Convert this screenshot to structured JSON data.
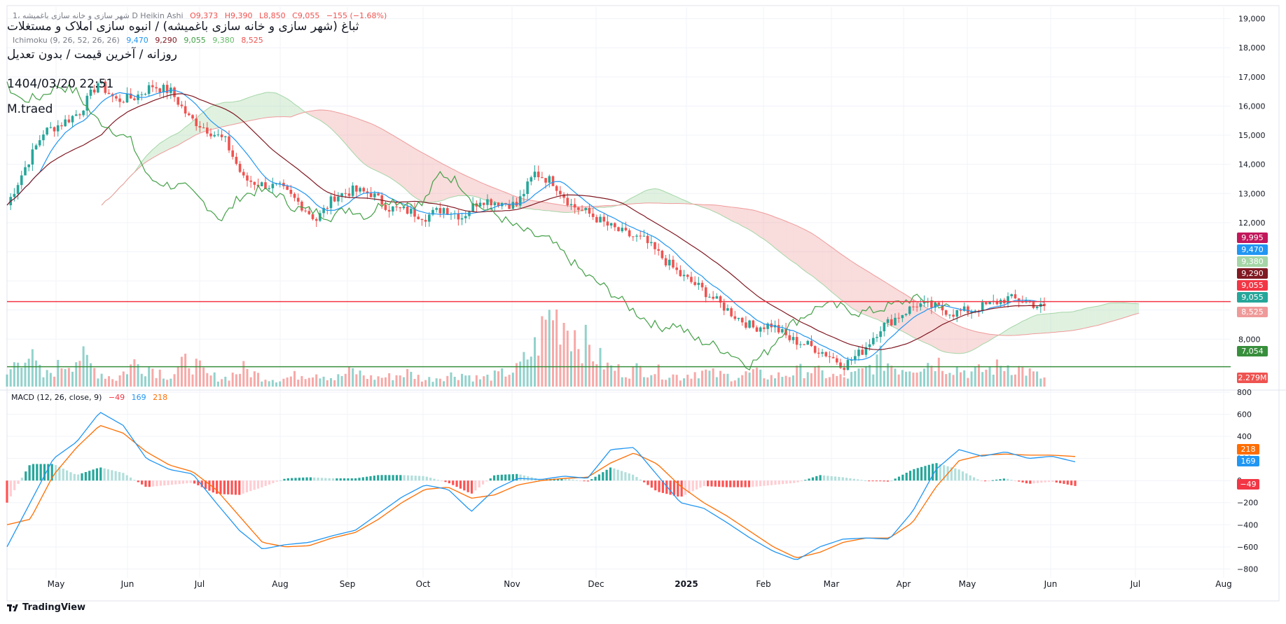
{
  "header": {
    "title_top": "1، شهر سازی و خانه سازی باغمیشه D Heikin Ashi",
    "ohlc": {
      "o": "O9,373",
      "h": "H9,390",
      "l": "L8,850",
      "c": "C9,055",
      "chg": "−155 (−1.68%)"
    },
    "symbol_title": "ثباغ (شهر سازی و خانه سازی باغمیشه) / انبوه سازی املاک و مستغلات",
    "ichimoku_legend": "Ichimoku (9, 26, 52, 26, 26)",
    "ichimoku_values": [
      "9,470",
      "9,290",
      "9,055",
      "9,380",
      "8,525"
    ],
    "subtitle": "روزانه / آخرین قیمت / بدون تعدیل",
    "datetime": "1404/03/20 22:51",
    "author": "M.traed"
  },
  "macd_legend": {
    "label": "MACD (12, 26, close, 9)",
    "hist": "−49",
    "macd": "169",
    "signal": "218"
  },
  "branding": {
    "logo_text": "TradingView"
  },
  "colors": {
    "up": "#26a69a",
    "down": "#ef5350",
    "tenkan": "#2962ff",
    "kijun": "#801922",
    "chikou": "#43a047",
    "kumo_up": "#a5d6a7",
    "kumo_down": "#ef9a9a",
    "hline_red": "#f23645",
    "hline_green": "#388e3c",
    "macd": "#2196f3",
    "signal": "#ff6d00"
  },
  "chart_data": [
    {
      "type": "candlestick",
      "title": "ثباغ (شهر سازی و خانه سازی باغمیشه) / انبوه سازی املاک و مستغلات",
      "xlabel": "",
      "ylabel": "",
      "x_tick_labels": [
        "May",
        "Jun",
        "Jul",
        "Aug",
        "Sep",
        "Oct",
        "Nov",
        "Dec",
        "2025",
        "Feb",
        "Mar",
        "Apr",
        "May",
        "Jun",
        "Jul",
        "Aug"
      ],
      "y_ticks": [
        8000,
        9000,
        10000,
        11000,
        12000,
        13000,
        14000,
        15000,
        16000,
        17000,
        18000,
        19000
      ],
      "y_tick_labels": [
        "8,000",
        "",
        "",
        "",
        "12,000",
        "13,000",
        "14,000",
        "15,000",
        "16,000",
        "17,000",
        "18,000",
        "19,000"
      ],
      "ylim": [
        6300,
        19400
      ],
      "price_key_points": {
        "x": [
          0,
          5,
          10,
          15,
          20,
          25,
          30,
          35,
          40,
          45,
          50,
          55,
          60,
          65,
          70,
          75,
          80,
          85,
          90,
          95,
          100,
          105,
          110,
          115,
          120,
          125,
          130,
          135,
          140,
          145,
          150,
          155,
          160,
          165,
          170,
          175,
          180,
          185,
          190,
          195,
          200,
          205,
          210,
          215,
          220,
          225,
          230,
          235,
          240,
          245,
          250,
          255,
          260,
          265,
          270,
          275,
          280,
          285
        ],
        "close": [
          12600,
          13900,
          15100,
          15400,
          15800,
          16800,
          16200,
          16300,
          16700,
          16500,
          15600,
          15200,
          14800,
          13500,
          13300,
          13200,
          12700,
          12100,
          12900,
          13100,
          13000,
          12500,
          12400,
          12200,
          12500,
          12200,
          12800,
          12700,
          12600,
          13700,
          13400,
          12600,
          12300,
          11900,
          11600,
          11400,
          10800,
          10200,
          9800,
          9300,
          8800,
          8400,
          8500,
          8000,
          7800,
          7500,
          7100,
          7600,
          8400,
          8800,
          9200,
          9100,
          8900,
          9000,
          9200,
          9400,
          9300,
          9050
        ],
        "volume_m": [
          1.2,
          3.8,
          1.0,
          2.2,
          3.1,
          1.5,
          0.8,
          2.4,
          1.9,
          1.0,
          2.8,
          1.1,
          0.9,
          1.8,
          1.0,
          0.7,
          1.2,
          1.5,
          0.8,
          1.6,
          0.9,
          1.0,
          1.4,
          0.7,
          1.1,
          1.3,
          0.8,
          1.2,
          1.7,
          3.9,
          8.0,
          6.1,
          3.8,
          2.0,
          1.5,
          1.9,
          1.4,
          1.0,
          1.6,
          1.2,
          1.0,
          1.4,
          1.0,
          1.3,
          1.8,
          1.2,
          0.9,
          1.5,
          2.8,
          1.9,
          2.2,
          2.6,
          2.0,
          1.4,
          1.8,
          2.2,
          1.6,
          0.8
        ]
      },
      "ichimoku": {
        "tenkan": 9470,
        "kijun": 9290,
        "chikou": 9055,
        "span_a": 9380,
        "span_b": 8525
      },
      "horizontal_lines": [
        {
          "value": 9290,
          "color": "#f23645"
        },
        {
          "value": 7054,
          "color": "#388e3c"
        }
      ],
      "price_labels": [
        {
          "text": "9,995",
          "color": "#c2185b"
        },
        {
          "text": "9,470",
          "color": "#2196f3"
        },
        {
          "text": "9,380",
          "color": "#a5d6a7"
        },
        {
          "text": "9,290",
          "color": "#801922"
        },
        {
          "text": "9,055",
          "color": "#f23645"
        },
        {
          "text": "9,055",
          "color": "#26a69a"
        },
        {
          "text": "8,525",
          "color": "#ef9a9a"
        },
        {
          "text": "7,054",
          "color": "#388e3c"
        },
        {
          "text": "2.279M",
          "color": "#ef5350"
        }
      ]
    },
    {
      "type": "line",
      "title": "MACD (12, 26, close, 9)",
      "y_ticks": [
        -800,
        -600,
        -400,
        -200,
        0,
        200,
        400,
        600,
        800
      ],
      "y_tick_labels": [
        "−800",
        "−600",
        "−400",
        "−200",
        "0",
        "200",
        "400",
        "600",
        "800"
      ],
      "ylim": [
        -880,
        800
      ],
      "series": [
        {
          "name": "MACD",
          "values": [
            -600,
            -200,
            200,
            350,
            620,
            500,
            200,
            100,
            60,
            -200,
            -450,
            -620,
            -580,
            -560,
            -500,
            -450,
            -300,
            -150,
            -40,
            -80,
            -280,
            -80,
            20,
            10,
            40,
            20,
            280,
            300,
            50,
            -200,
            -250,
            -380,
            -520,
            -640,
            -720,
            -600,
            -530,
            -520,
            -530,
            -280,
            100,
            280,
            220,
            260,
            200,
            220,
            170
          ]
        },
        {
          "name": "Signal",
          "values": [
            -400,
            -350,
            50,
            300,
            500,
            430,
            260,
            140,
            80,
            -80,
            -320,
            -560,
            -600,
            -590,
            -520,
            -470,
            -350,
            -200,
            -80,
            -60,
            -160,
            -130,
            -40,
            0,
            20,
            30,
            160,
            250,
            150,
            -50,
            -200,
            -320,
            -460,
            -600,
            -700,
            -650,
            -560,
            -520,
            -520,
            -380,
            -60,
            180,
            230,
            240,
            230,
            230,
            218
          ]
        },
        {
          "name": "Histogram",
          "values": [
            -200,
            150,
            150,
            50,
            120,
            70,
            -60,
            -40,
            -20,
            -120,
            -130,
            -60,
            20,
            30,
            20,
            20,
            50,
            50,
            40,
            -20,
            -120,
            50,
            60,
            10,
            20,
            -10,
            120,
            50,
            -100,
            -150,
            -50,
            -60,
            -60,
            -40,
            -20,
            50,
            30,
            0,
            -10,
            100,
            160,
            100,
            -10,
            20,
            -30,
            -10,
            -49
          ]
        }
      ],
      "value_labels": [
        {
          "text": "218",
          "color": "#ff6d00"
        },
        {
          "text": "169",
          "color": "#2196f3"
        },
        {
          "text": "−49",
          "color": "#f23645"
        }
      ]
    }
  ]
}
